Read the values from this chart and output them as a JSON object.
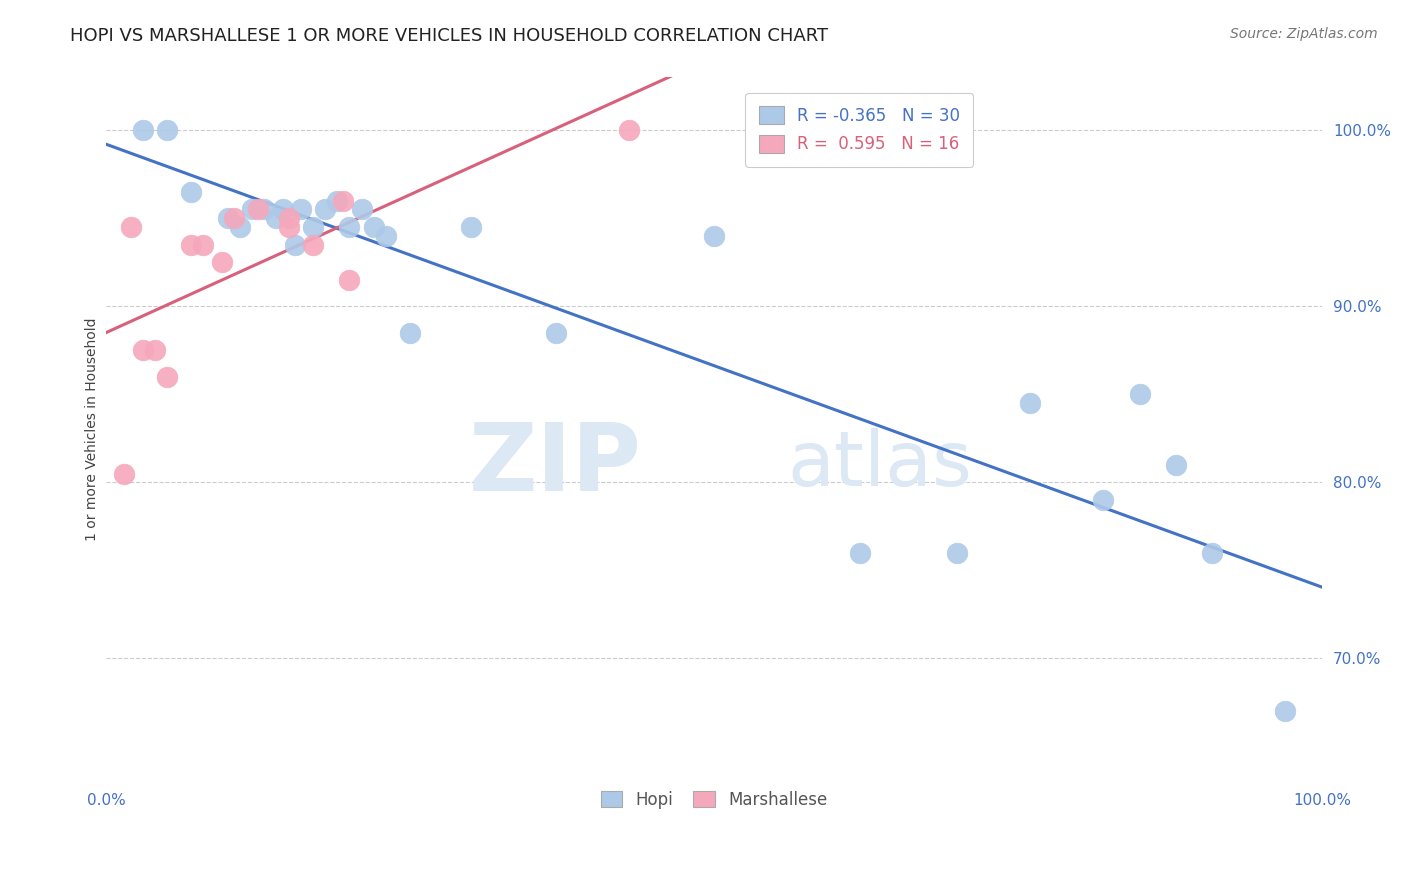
{
  "title": "HOPI VS MARSHALLESE 1 OR MORE VEHICLES IN HOUSEHOLD CORRELATION CHART",
  "source": "Source: ZipAtlas.com",
  "ylabel": "1 or more Vehicles in Household",
  "xlim": [
    0.0,
    100.0
  ],
  "ylim": [
    63.0,
    103.0
  ],
  "y_ticks": [
    70.0,
    80.0,
    90.0,
    100.0
  ],
  "hopi_R": -0.365,
  "hopi_N": 30,
  "marsh_R": 0.595,
  "marsh_N": 16,
  "watermark_zip": "ZIP",
  "watermark_atlas": "atlas",
  "legend_hopi": "Hopi",
  "legend_marsh": "Marshallese",
  "hopi_color": "#adc9e8",
  "marsh_color": "#f5a8bc",
  "hopi_line_color": "#4472c4",
  "marsh_line_color": "#d9607a",
  "hopi_x": [
    3.0,
    5.0,
    7.0,
    10.0,
    11.0,
    12.0,
    13.0,
    14.0,
    14.5,
    15.5,
    16.0,
    17.0,
    18.0,
    19.0,
    20.0,
    21.0,
    22.0,
    23.0,
    25.0,
    30.0,
    37.0,
    50.0,
    62.0,
    70.0,
    76.0,
    82.0,
    85.0,
    88.0,
    91.0,
    97.0
  ],
  "hopi_y": [
    100.0,
    100.0,
    96.5,
    95.0,
    94.5,
    95.5,
    95.5,
    95.0,
    95.5,
    93.5,
    95.5,
    94.5,
    95.5,
    96.0,
    94.5,
    95.5,
    94.5,
    94.0,
    88.5,
    94.5,
    88.5,
    94.0,
    76.0,
    76.0,
    84.5,
    79.0,
    85.0,
    81.0,
    76.0,
    67.0
  ],
  "marsh_x": [
    1.5,
    2.0,
    3.0,
    4.0,
    5.0,
    7.0,
    8.0,
    9.5,
    10.5,
    12.5,
    15.0,
    15.0,
    17.0,
    19.5,
    20.0,
    43.0
  ],
  "marsh_y": [
    80.5,
    94.5,
    87.5,
    87.5,
    86.0,
    93.5,
    93.5,
    92.5,
    95.0,
    95.5,
    94.5,
    95.0,
    93.5,
    96.0,
    91.5,
    100.0
  ],
  "background_color": "#ffffff",
  "grid_color": "#cccccc",
  "title_fontsize": 13,
  "axis_label_fontsize": 10,
  "tick_fontsize": 11,
  "source_fontsize": 10,
  "legend_fontsize": 12
}
